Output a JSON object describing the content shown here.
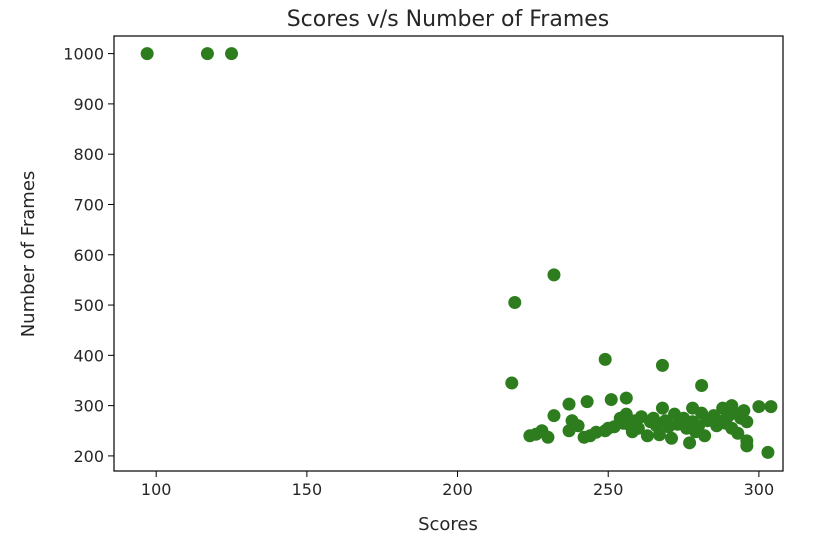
{
  "chart_data": {
    "type": "scatter",
    "title": "Scores v/s Number of Frames",
    "xlabel": "Scores",
    "ylabel": "Number of Frames",
    "xlim": [
      86,
      308
    ],
    "ylim": [
      170,
      1035
    ],
    "xticks": [
      100,
      150,
      200,
      250,
      300
    ],
    "yticks": [
      200,
      300,
      400,
      500,
      600,
      700,
      800,
      900,
      1000
    ],
    "grid": false,
    "legend": "none",
    "marker_color": "#2d7d1e",
    "points": [
      {
        "x": 97,
        "y": 1000
      },
      {
        "x": 117,
        "y": 1000
      },
      {
        "x": 125,
        "y": 1000
      },
      {
        "x": 232,
        "y": 560
      },
      {
        "x": 219,
        "y": 505
      },
      {
        "x": 249,
        "y": 392
      },
      {
        "x": 268,
        "y": 380
      },
      {
        "x": 218,
        "y": 345
      },
      {
        "x": 281,
        "y": 340
      },
      {
        "x": 224,
        "y": 240
      },
      {
        "x": 226,
        "y": 243
      },
      {
        "x": 228,
        "y": 250
      },
      {
        "x": 230,
        "y": 237
      },
      {
        "x": 232,
        "y": 280
      },
      {
        "x": 237,
        "y": 303
      },
      {
        "x": 238,
        "y": 270
      },
      {
        "x": 237,
        "y": 250
      },
      {
        "x": 240,
        "y": 260
      },
      {
        "x": 242,
        "y": 237
      },
      {
        "x": 243,
        "y": 308
      },
      {
        "x": 244,
        "y": 240
      },
      {
        "x": 246,
        "y": 247
      },
      {
        "x": 249,
        "y": 250
      },
      {
        "x": 250,
        "y": 255
      },
      {
        "x": 251,
        "y": 312
      },
      {
        "x": 252,
        "y": 258
      },
      {
        "x": 254,
        "y": 275
      },
      {
        "x": 255,
        "y": 265
      },
      {
        "x": 256,
        "y": 315
      },
      {
        "x": 256,
        "y": 283
      },
      {
        "x": 257,
        "y": 262
      },
      {
        "x": 258,
        "y": 248
      },
      {
        "x": 259,
        "y": 270
      },
      {
        "x": 260,
        "y": 255
      },
      {
        "x": 261,
        "y": 278
      },
      {
        "x": 263,
        "y": 240
      },
      {
        "x": 264,
        "y": 268
      },
      {
        "x": 265,
        "y": 275
      },
      {
        "x": 266,
        "y": 260
      },
      {
        "x": 267,
        "y": 242
      },
      {
        "x": 268,
        "y": 295
      },
      {
        "x": 269,
        "y": 270
      },
      {
        "x": 270,
        "y": 258
      },
      {
        "x": 271,
        "y": 235
      },
      {
        "x": 272,
        "y": 283
      },
      {
        "x": 273,
        "y": 263
      },
      {
        "x": 275,
        "y": 275
      },
      {
        "x": 276,
        "y": 255
      },
      {
        "x": 277,
        "y": 226
      },
      {
        "x": 278,
        "y": 295
      },
      {
        "x": 278,
        "y": 268
      },
      {
        "x": 279,
        "y": 248
      },
      {
        "x": 280,
        "y": 260
      },
      {
        "x": 281,
        "y": 285
      },
      {
        "x": 282,
        "y": 240
      },
      {
        "x": 283,
        "y": 270
      },
      {
        "x": 285,
        "y": 280
      },
      {
        "x": 286,
        "y": 260
      },
      {
        "x": 288,
        "y": 295
      },
      {
        "x": 288,
        "y": 270
      },
      {
        "x": 289,
        "y": 265
      },
      {
        "x": 290,
        "y": 280
      },
      {
        "x": 291,
        "y": 300
      },
      {
        "x": 291,
        "y": 255
      },
      {
        "x": 292,
        "y": 285
      },
      {
        "x": 293,
        "y": 245
      },
      {
        "x": 294,
        "y": 275
      },
      {
        "x": 295,
        "y": 290
      },
      {
        "x": 296,
        "y": 268
      },
      {
        "x": 296,
        "y": 230
      },
      {
        "x": 296,
        "y": 220
      },
      {
        "x": 300,
        "y": 298
      },
      {
        "x": 303,
        "y": 207
      },
      {
        "x": 304,
        "y": 298
      }
    ]
  }
}
